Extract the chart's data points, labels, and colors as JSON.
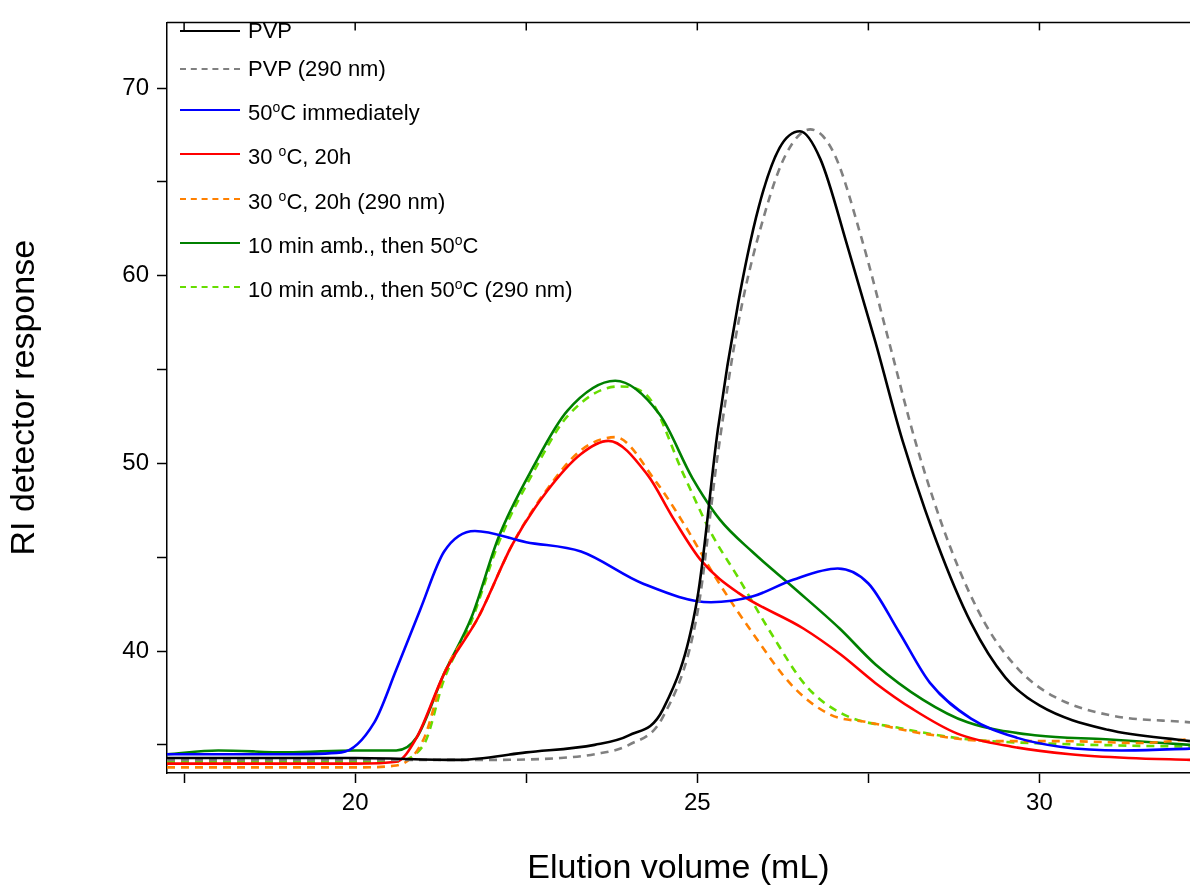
{
  "chart_data": {
    "type": "line",
    "xlabel": "Elution volume (mL)",
    "ylabel": "RI detector response",
    "xlim": [
      17.25,
      32.2
    ],
    "ylim": [
      33.5,
      73.5
    ],
    "xticks": [
      {
        "value": 17.5,
        "label": null
      },
      20,
      {
        "value": 22.5,
        "label": null
      },
      25,
      {
        "value": 27.5,
        "label": null
      },
      30
    ],
    "yticks": [
      {
        "value": 35,
        "label": null
      },
      40,
      {
        "value": 45,
        "label": null
      },
      50,
      {
        "value": 55,
        "label": null
      },
      60,
      {
        "value": 65,
        "label": null
      },
      70
    ],
    "grid": false,
    "legend": "top left",
    "marker": "none",
    "series": [
      {
        "name": "PVP",
        "color": "#000000",
        "line_style": "solid",
        "x": [
          17.25,
          20,
          21.5,
          22.5,
          23.5,
          24,
          24.5,
          25,
          25.3,
          25.6,
          25.9,
          26.2,
          26.5,
          26.8,
          27.2,
          27.6,
          28,
          28.5,
          29,
          29.5,
          30,
          31,
          32.2
        ],
        "values": [
          34.3,
          34.3,
          34.2,
          34.6,
          35.0,
          35.5,
          36.9,
          42.8,
          51.8,
          58.6,
          63.7,
          66.8,
          67.7,
          66.2,
          61.5,
          56.5,
          51.2,
          45.8,
          41.5,
          38.6,
          37.1,
          35.8,
          35.2
        ]
      },
      {
        "name": "PVP (290 nm)",
        "color": "#808080",
        "line_style": "dashed",
        "x": [
          17.25,
          20,
          22,
          23,
          23.5,
          24,
          24.5,
          25,
          25.3,
          25.6,
          26,
          26.3,
          26.65,
          27,
          27.4,
          27.8,
          28.2,
          28.7,
          29.2,
          29.7,
          30.2,
          31,
          32.2
        ],
        "values": [
          34.2,
          34.2,
          34.2,
          34.3,
          34.5,
          35.0,
          36.5,
          42.0,
          50.5,
          57.5,
          63.5,
          66.5,
          67.8,
          66.5,
          62.0,
          56.5,
          51.0,
          45.5,
          41.5,
          39.0,
          37.6,
          36.6,
          36.2
        ]
      },
      {
        "name": "50$^{o}$C immediately",
        "color": "#0000ff",
        "line_style": "solid",
        "x": [
          17.25,
          19,
          19.8,
          20.28,
          20.6,
          20.95,
          21.3,
          21.75,
          22.5,
          23.3,
          24.2,
          25.2,
          25.8,
          26.4,
          27.05,
          27.5,
          27.95,
          28.4,
          29,
          29.65,
          30.3,
          31.2,
          32.2
        ],
        "values": [
          34.5,
          34.5,
          34.6,
          36.2,
          39.0,
          42.2,
          45.3,
          46.4,
          45.8,
          45.3,
          43.6,
          42.6,
          42.9,
          43.8,
          44.4,
          43.6,
          41.0,
          38.3,
          36.4,
          35.4,
          34.9,
          34.7,
          34.8
        ]
      },
      {
        "name": "30 $^{o}$C, 20h",
        "color": "#ff0000",
        "line_style": "solid",
        "x": [
          17.25,
          20,
          20.6,
          20.9,
          21.3,
          21.8,
          22.3,
          22.8,
          23.3,
          23.7,
          24.27,
          24.66,
          25.06,
          25.6,
          26.55,
          27.1,
          27.6,
          28.15,
          28.8,
          29.6,
          30.45,
          31.3,
          32.2
        ],
        "values": [
          34.0,
          34.0,
          34.1,
          35.4,
          38.8,
          41.8,
          45.7,
          48.5,
          50.5,
          51.2,
          49.4,
          47.0,
          44.8,
          43.1,
          41.2,
          39.8,
          38.3,
          36.9,
          35.6,
          34.9,
          34.5,
          34.3,
          34.2
        ]
      },
      {
        "name": "30 $^{o}$C, 20h (290 nm)",
        "color": "#ff8000",
        "line_style": "dashed",
        "x": [
          17.25,
          20,
          20.6,
          21,
          21.3,
          21.8,
          22.3,
          22.8,
          23.3,
          23.8,
          24.4,
          24.8,
          25.27,
          25.8,
          26.4,
          26.95,
          27.5,
          28.3,
          29.3,
          30.3,
          31.5,
          32.2
        ],
        "values": [
          33.8,
          33.8,
          33.9,
          35.3,
          38.8,
          41.8,
          45.7,
          48.6,
          50.7,
          51.4,
          49.0,
          46.8,
          43.9,
          41.0,
          38.1,
          36.6,
          36.2,
          35.6,
          35.2,
          35.2,
          35.1,
          35.3
        ]
      },
      {
        "name": "10 min amb., then 50$^{o}$C",
        "color": "#008000",
        "line_style": "solid",
        "x": [
          17.25,
          18,
          19,
          20,
          20.6,
          20.9,
          21.3,
          21.7,
          22.1,
          22.6,
          23.1,
          23.8,
          24.45,
          24.93,
          25.33,
          25.8,
          26.4,
          27.08,
          27.6,
          28.3,
          28.95,
          29.97,
          30.97,
          32.2
        ],
        "values": [
          34.5,
          34.7,
          34.6,
          34.7,
          34.7,
          35.4,
          38.8,
          41.8,
          46.1,
          49.8,
          52.8,
          54.4,
          52.6,
          49.2,
          47.0,
          45.3,
          43.4,
          41.2,
          39.3,
          37.4,
          36.2,
          35.5,
          35.3,
          35.0
        ]
      },
      {
        "name": "10 min amb., then 50$^{o}$C (290 nm)",
        "color": "#66dd00",
        "line_style": "dashed",
        "x": [
          17.25,
          19,
          20.5,
          21,
          21.3,
          21.7,
          22.1,
          22.6,
          23.1,
          23.85,
          24.27,
          24.8,
          25.2,
          25.6,
          26.07,
          26.6,
          27.15,
          27.95,
          28.95,
          30.3,
          32.2
        ],
        "values": [
          34.1,
          34.1,
          34.1,
          35.0,
          38.5,
          41.6,
          45.8,
          49.5,
          52.5,
          54.1,
          53.6,
          49.4,
          46.3,
          43.9,
          41.0,
          38.1,
          36.6,
          35.9,
          35.3,
          35.05,
          34.9
        ]
      }
    ]
  }
}
